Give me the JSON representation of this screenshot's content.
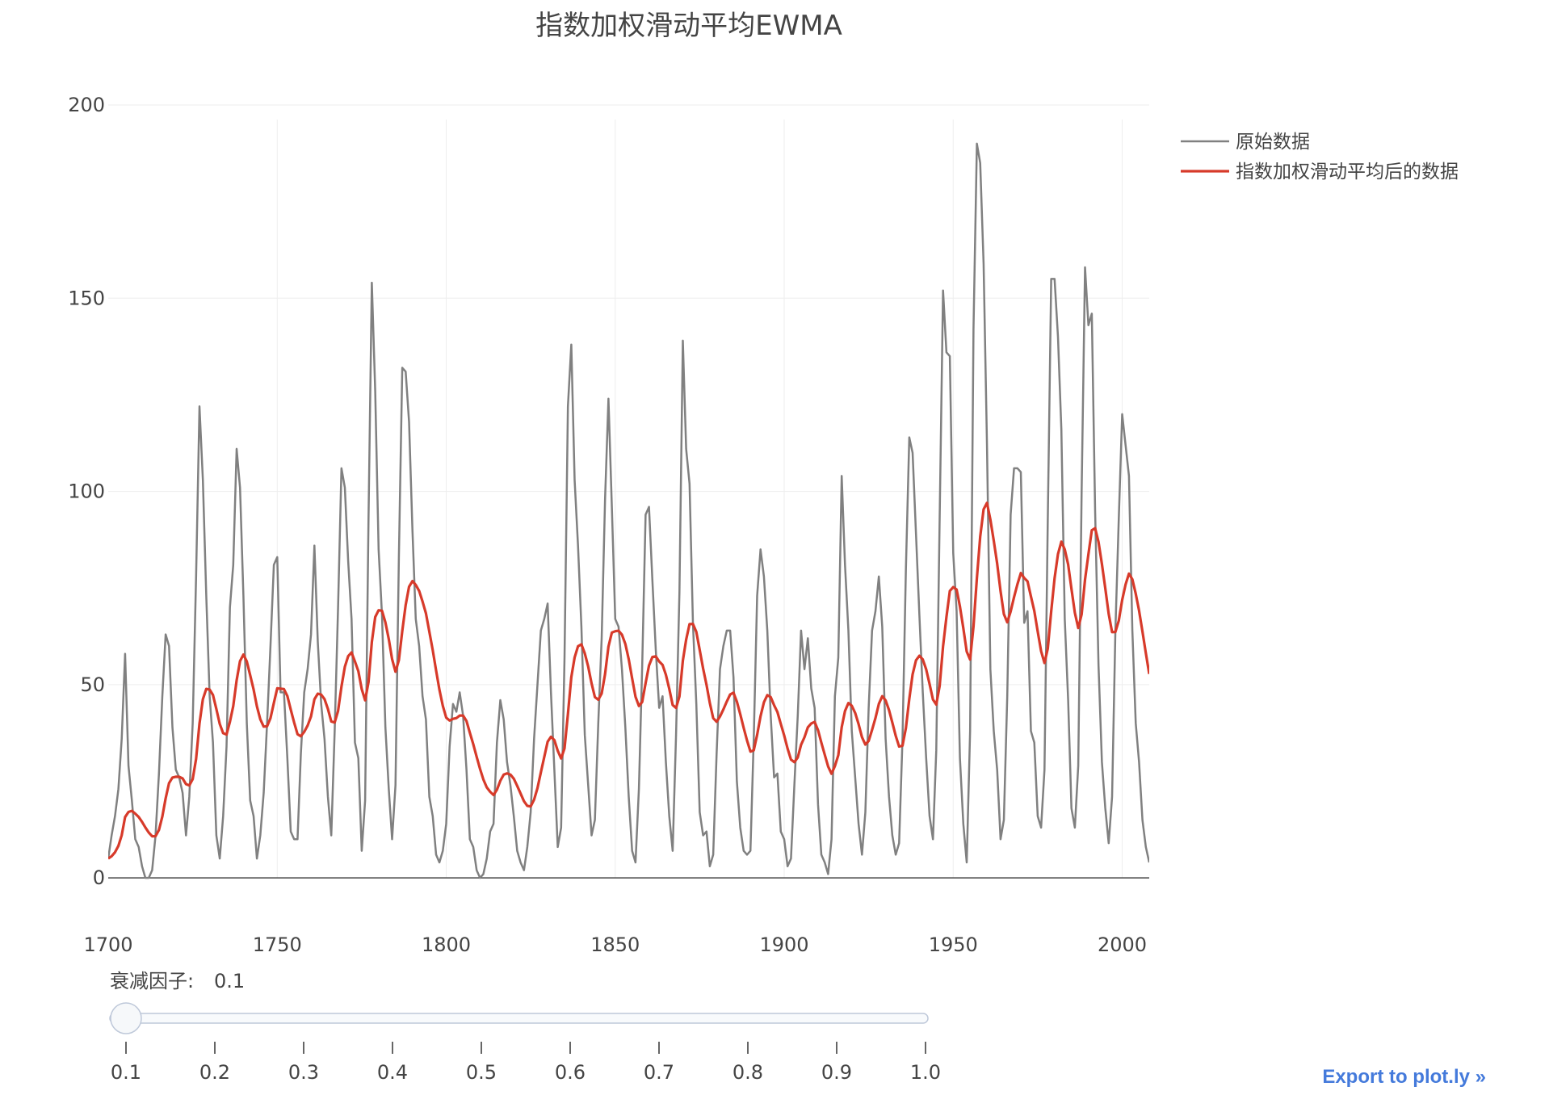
{
  "title": "指数加权滑动平均EWMA",
  "export_link": "Export to plot.ly »",
  "slider": {
    "label": "衰减因子:",
    "current_value": "0.1",
    "steps": [
      "0.1",
      "0.2",
      "0.3",
      "0.4",
      "0.5",
      "0.6",
      "0.7",
      "0.8",
      "0.9",
      "1.0"
    ],
    "selected_index": 0
  },
  "chart_data": {
    "type": "line",
    "title": "指数加权滑动平均EWMA",
    "xlabel": "",
    "ylabel": "",
    "xlim": [
      1700,
      2008
    ],
    "ylim": [
      -10,
      200
    ],
    "x_ticks": [
      1700,
      1750,
      1800,
      1850,
      1900,
      1950,
      2000
    ],
    "y_ticks": [
      0,
      50,
      100,
      150,
      200
    ],
    "grid": true,
    "legend_position": "top-right",
    "series": [
      {
        "name": "原始数据",
        "color": "#808080",
        "x_start": 1700,
        "x_step": 1,
        "values": [
          5,
          11,
          16,
          23,
          36,
          58,
          29,
          20,
          10,
          8,
          3,
          0,
          0,
          2,
          11,
          27,
          47,
          63,
          60,
          39,
          28,
          26,
          22,
          11,
          21,
          40,
          78,
          122,
          103,
          73,
          47,
          35,
          11,
          5,
          16,
          34,
          70,
          81,
          111,
          101,
          73,
          40,
          20,
          16,
          5,
          11,
          22,
          40,
          60,
          81,
          83,
          48,
          48,
          31,
          12,
          10,
          10,
          32,
          48,
          54,
          63,
          86,
          61,
          45,
          36,
          21,
          11,
          38,
          70,
          106,
          101,
          82,
          67,
          35,
          31,
          7,
          20,
          93,
          154,
          126,
          85,
          68,
          39,
          23,
          10,
          24,
          83,
          132,
          131,
          118,
          90,
          67,
          60,
          47,
          41,
          21,
          16,
          6,
          4,
          7,
          14,
          34,
          45,
          43,
          48,
          42,
          28,
          10,
          8,
          2,
          0,
          1,
          5,
          12,
          14,
          35,
          46,
          41,
          30,
          24,
          16,
          7,
          4,
          2,
          8,
          17,
          36,
          50,
          64,
          67,
          71,
          48,
          28,
          8,
          13,
          57,
          122,
          138,
          103,
          86,
          65,
          37,
          24,
          11,
          15,
          40,
          62,
          98,
          124,
          96,
          67,
          65,
          54,
          39,
          21,
          7,
          4,
          23,
          55,
          94,
          96,
          77,
          59,
          44,
          47,
          30,
          16,
          7,
          37,
          74,
          139,
          111,
          102,
          66,
          45,
          17,
          11,
          12,
          3,
          6,
          32,
          54,
          60,
          64,
          64,
          52,
          25,
          13,
          7,
          6,
          7,
          36,
          73,
          85,
          78,
          64,
          42,
          26,
          27,
          12,
          10,
          3,
          5,
          24,
          42,
          64,
          54,
          62,
          49,
          44,
          19,
          6,
          4,
          1,
          10,
          47,
          57,
          104,
          81,
          64,
          38,
          26,
          14,
          6,
          17,
          44,
          64,
          69,
          78,
          65,
          36,
          21,
          11,
          6,
          9,
          36,
          80,
          114,
          110,
          89,
          68,
          48,
          31,
          16,
          10,
          33,
          93,
          152,
          136,
          135,
          84,
          69,
          31,
          14,
          4,
          38,
          142,
          190,
          185,
          159,
          112,
          54,
          38,
          28,
          10,
          15,
          47,
          94,
          106,
          106,
          105,
          66,
          69,
          38,
          35,
          16,
          13,
          28,
          93,
          155,
          155,
          140,
          116,
          67,
          46,
          18,
          13,
          29,
          100,
          158,
          143,
          146,
          95,
          55,
          30,
          18,
          9,
          21,
          64,
          93,
          120,
          112,
          104,
          64,
          40,
          30,
          15,
          8,
          4
        ]
      },
      {
        "name": "指数加权滑动平均后的数据",
        "color": "#d73a2a",
        "computed_from": "原始数据",
        "smoothing_factor": 0.1
      }
    ]
  }
}
